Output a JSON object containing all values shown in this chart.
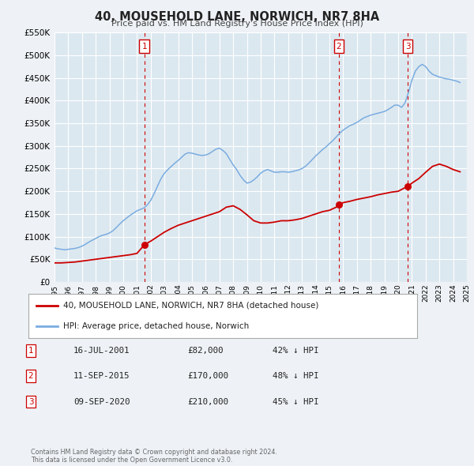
{
  "title": "40, MOUSEHOLD LANE, NORWICH, NR7 8HA",
  "subtitle": "Price paid vs. HM Land Registry's House Price Index (HPI)",
  "ylim": [
    0,
    550000
  ],
  "xlim": [
    1995.0,
    2025.0
  ],
  "yticks": [
    0,
    50000,
    100000,
    150000,
    200000,
    250000,
    300000,
    350000,
    400000,
    450000,
    500000,
    550000
  ],
  "background_color": "#eef2f6",
  "plot_bg_color": "#dce8f0",
  "grid_color": "#ffffff",
  "red_line_color": "#cc0000",
  "blue_line_color": "#7aace0",
  "dashed_line_color": "#cc0000",
  "sale_points": [
    {
      "year": 2001.54,
      "value": 82000,
      "label": "1"
    },
    {
      "year": 2015.69,
      "value": 170000,
      "label": "2"
    },
    {
      "year": 2020.69,
      "value": 210000,
      "label": "3"
    }
  ],
  "transactions": [
    {
      "label": "1",
      "date": "16-JUL-2001",
      "price": "£82,000",
      "hpi": "42% ↓ HPI"
    },
    {
      "label": "2",
      "date": "11-SEP-2015",
      "price": "£170,000",
      "hpi": "48% ↓ HPI"
    },
    {
      "label": "3",
      "date": "09-SEP-2020",
      "price": "£210,000",
      "hpi": "45% ↓ HPI"
    }
  ],
  "legend_line1": "40, MOUSEHOLD LANE, NORWICH, NR7 8HA (detached house)",
  "legend_line2": "HPI: Average price, detached house, Norwich",
  "footer": "Contains HM Land Registry data © Crown copyright and database right 2024.\nThis data is licensed under the Open Government Licence v3.0.",
  "hpi_data": {
    "years": [
      1995.0,
      1995.25,
      1995.5,
      1995.75,
      1996.0,
      1996.25,
      1996.5,
      1996.75,
      1997.0,
      1997.25,
      1997.5,
      1997.75,
      1998.0,
      1998.25,
      1998.5,
      1998.75,
      1999.0,
      1999.25,
      1999.5,
      1999.75,
      2000.0,
      2000.25,
      2000.5,
      2000.75,
      2001.0,
      2001.25,
      2001.5,
      2001.75,
      2002.0,
      2002.25,
      2002.5,
      2002.75,
      2003.0,
      2003.25,
      2003.5,
      2003.75,
      2004.0,
      2004.25,
      2004.5,
      2004.75,
      2005.0,
      2005.25,
      2005.5,
      2005.75,
      2006.0,
      2006.25,
      2006.5,
      2006.75,
      2007.0,
      2007.25,
      2007.5,
      2007.75,
      2008.0,
      2008.25,
      2008.5,
      2008.75,
      2009.0,
      2009.25,
      2009.5,
      2009.75,
      2010.0,
      2010.25,
      2010.5,
      2010.75,
      2011.0,
      2011.25,
      2011.5,
      2011.75,
      2012.0,
      2012.25,
      2012.5,
      2012.75,
      2013.0,
      2013.25,
      2013.5,
      2013.75,
      2014.0,
      2014.25,
      2014.5,
      2014.75,
      2015.0,
      2015.25,
      2015.5,
      2015.75,
      2016.0,
      2016.25,
      2016.5,
      2016.75,
      2017.0,
      2017.25,
      2017.5,
      2017.75,
      2018.0,
      2018.25,
      2018.5,
      2018.75,
      2019.0,
      2019.25,
      2019.5,
      2019.75,
      2020.0,
      2020.25,
      2020.5,
      2020.75,
      2021.0,
      2021.25,
      2021.5,
      2021.75,
      2022.0,
      2022.25,
      2022.5,
      2022.75,
      2023.0,
      2023.25,
      2023.5,
      2023.75,
      2024.0,
      2024.25,
      2024.5
    ],
    "values": [
      75000,
      73000,
      72000,
      71000,
      72000,
      73000,
      74000,
      76000,
      79000,
      83000,
      88000,
      92000,
      96000,
      100000,
      103000,
      105000,
      108000,
      113000,
      120000,
      128000,
      135000,
      141000,
      147000,
      152000,
      157000,
      160000,
      163000,
      170000,
      180000,
      195000,
      212000,
      228000,
      240000,
      248000,
      255000,
      262000,
      268000,
      275000,
      282000,
      285000,
      284000,
      282000,
      280000,
      279000,
      280000,
      283000,
      288000,
      293000,
      295000,
      290000,
      283000,
      270000,
      258000,
      248000,
      235000,
      225000,
      218000,
      220000,
      225000,
      232000,
      240000,
      245000,
      248000,
      245000,
      242000,
      242000,
      243000,
      243000,
      242000,
      243000,
      245000,
      247000,
      250000,
      255000,
      262000,
      270000,
      278000,
      285000,
      292000,
      298000,
      305000,
      312000,
      320000,
      328000,
      335000,
      340000,
      345000,
      348000,
      352000,
      357000,
      362000,
      365000,
      368000,
      370000,
      372000,
      374000,
      376000,
      380000,
      385000,
      390000,
      390000,
      385000,
      395000,
      418000,
      445000,
      465000,
      475000,
      480000,
      475000,
      465000,
      458000,
      455000,
      452000,
      450000,
      448000,
      447000,
      445000,
      443000,
      440000
    ]
  },
  "price_data": {
    "years": [
      1995.0,
      1995.5,
      1996.0,
      1996.5,
      1997.0,
      1997.5,
      1998.0,
      1998.5,
      1999.0,
      1999.5,
      2000.0,
      2000.5,
      2001.0,
      2001.54,
      2002.0,
      2002.5,
      2003.0,
      2003.5,
      2004.0,
      2004.5,
      2005.0,
      2005.5,
      2006.0,
      2006.5,
      2007.0,
      2007.5,
      2008.0,
      2008.5,
      2009.0,
      2009.5,
      2010.0,
      2010.5,
      2011.0,
      2011.5,
      2012.0,
      2012.5,
      2013.0,
      2013.5,
      2014.0,
      2014.5,
      2015.0,
      2015.5,
      2015.69,
      2016.0,
      2016.5,
      2017.0,
      2017.5,
      2018.0,
      2018.5,
      2019.0,
      2019.5,
      2020.0,
      2020.5,
      2020.69,
      2021.0,
      2021.5,
      2022.0,
      2022.5,
      2023.0,
      2023.5,
      2024.0,
      2024.5
    ],
    "values": [
      42000,
      42000,
      43000,
      44000,
      46000,
      48000,
      50000,
      52000,
      54000,
      56000,
      58000,
      60000,
      63000,
      82000,
      90000,
      100000,
      110000,
      118000,
      125000,
      130000,
      135000,
      140000,
      145000,
      150000,
      155000,
      165000,
      168000,
      160000,
      148000,
      135000,
      130000,
      130000,
      132000,
      135000,
      135000,
      137000,
      140000,
      145000,
      150000,
      155000,
      158000,
      165000,
      170000,
      175000,
      178000,
      182000,
      185000,
      188000,
      192000,
      195000,
      198000,
      200000,
      208000,
      210000,
      218000,
      228000,
      242000,
      255000,
      260000,
      255000,
      248000,
      243000
    ]
  }
}
